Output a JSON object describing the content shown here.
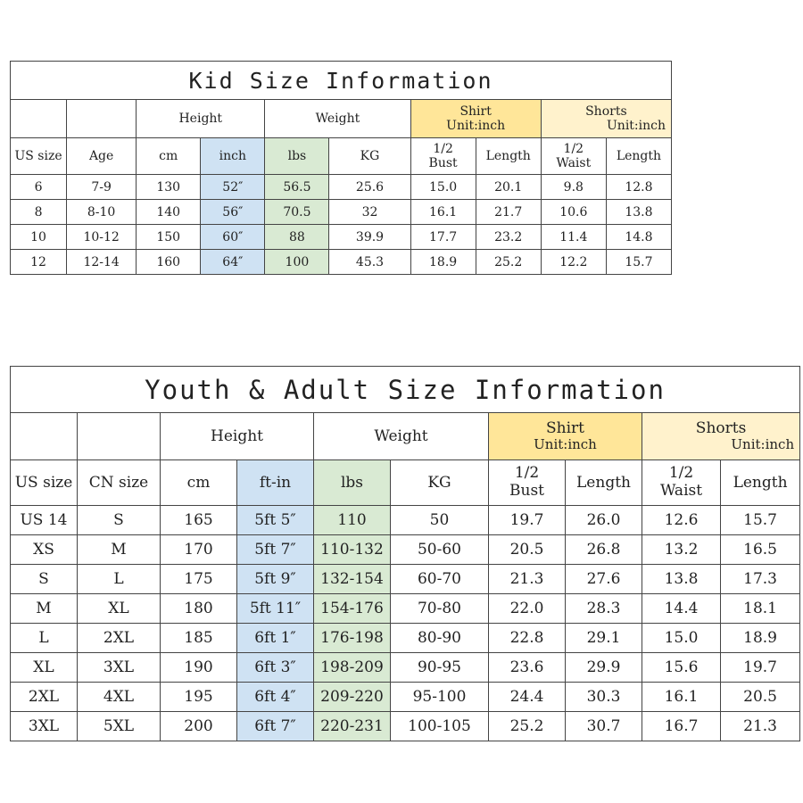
{
  "kid": {
    "title": "Kid Size Information",
    "group_headers": {
      "height": "Height",
      "weight": "Weight",
      "shirt": "Shirt",
      "shirt_unit": "Unit:inch",
      "shorts": "Shorts",
      "shorts_unit": "Unit:inch"
    },
    "columns": [
      "US size",
      "Age",
      "cm",
      "inch",
      "lbs",
      "KG",
      "1/2 Bust",
      "Length",
      "1/2 Waist",
      "Length"
    ],
    "columns_split": {
      "bust_1": "1/2",
      "bust_2": "Bust",
      "waist_1": "1/2",
      "waist_2": "Waist"
    },
    "rows": [
      [
        "6",
        "7-9",
        "130",
        "52″",
        "56.5",
        "25.6",
        "15.0",
        "20.1",
        "9.8",
        "12.8"
      ],
      [
        "8",
        "8-10",
        "140",
        "56″",
        "70.5",
        "32",
        "16.1",
        "21.7",
        "10.6",
        "13.8"
      ],
      [
        "10",
        "10-12",
        "150",
        "60″",
        "88",
        "39.9",
        "17.7",
        "23.2",
        "11.4",
        "14.8"
      ],
      [
        "12",
        "12-14",
        "160",
        "64″",
        "100",
        "45.3",
        "18.9",
        "25.2",
        "12.2",
        "15.7"
      ]
    ]
  },
  "adult": {
    "title": "Youth & Adult Size Information",
    "group_headers": {
      "height": "Height",
      "weight": "Weight",
      "shirt": "Shirt",
      "shirt_unit": "Unit:inch",
      "shorts": "Shorts",
      "shorts_unit": "Unit:inch"
    },
    "columns": [
      "US size",
      "CN size",
      "cm",
      "ft-in",
      "lbs",
      "KG",
      "1/2 Bust",
      "Length",
      "1/2 Waist",
      "Length"
    ],
    "columns_split": {
      "bust_1": "1/2",
      "bust_2": "Bust",
      "waist_1": "1/2",
      "waist_2": "Waist"
    },
    "rows": [
      [
        "US 14",
        "S",
        "165",
        "5ft 5″",
        "110",
        "50",
        "19.7",
        "26.0",
        "12.6",
        "15.7"
      ],
      [
        "XS",
        "M",
        "170",
        "5ft 7″",
        "110-132",
        "50-60",
        "20.5",
        "26.8",
        "13.2",
        "16.5"
      ],
      [
        "S",
        "L",
        "175",
        "5ft 9″",
        "132-154",
        "60-70",
        "21.3",
        "27.6",
        "13.8",
        "17.3"
      ],
      [
        "M",
        "XL",
        "180",
        "5ft 11″",
        "154-176",
        "70-80",
        "22.0",
        "28.3",
        "14.4",
        "18.1"
      ],
      [
        "L",
        "2XL",
        "185",
        "6ft 1″",
        "176-198",
        "80-90",
        "22.8",
        "29.1",
        "15.0",
        "18.9"
      ],
      [
        "XL",
        "3XL",
        "190",
        "6ft 3″",
        "198-209",
        "90-95",
        "23.6",
        "29.9",
        "15.6",
        "19.7"
      ],
      [
        "2XL",
        "4XL",
        "195",
        "6ft 4″",
        "209-220",
        "95-100",
        "24.4",
        "30.3",
        "16.1",
        "20.5"
      ],
      [
        "3XL",
        "5XL",
        "200",
        "6ft 7″",
        "220-231",
        "100-105",
        "25.2",
        "30.7",
        "16.7",
        "21.3"
      ]
    ]
  },
  "colors": {
    "blue_column": "#cfe2f3",
    "green_column": "#d9ead3",
    "shirt_header": "#ffe699",
    "shorts_header": "#fff2cc"
  }
}
